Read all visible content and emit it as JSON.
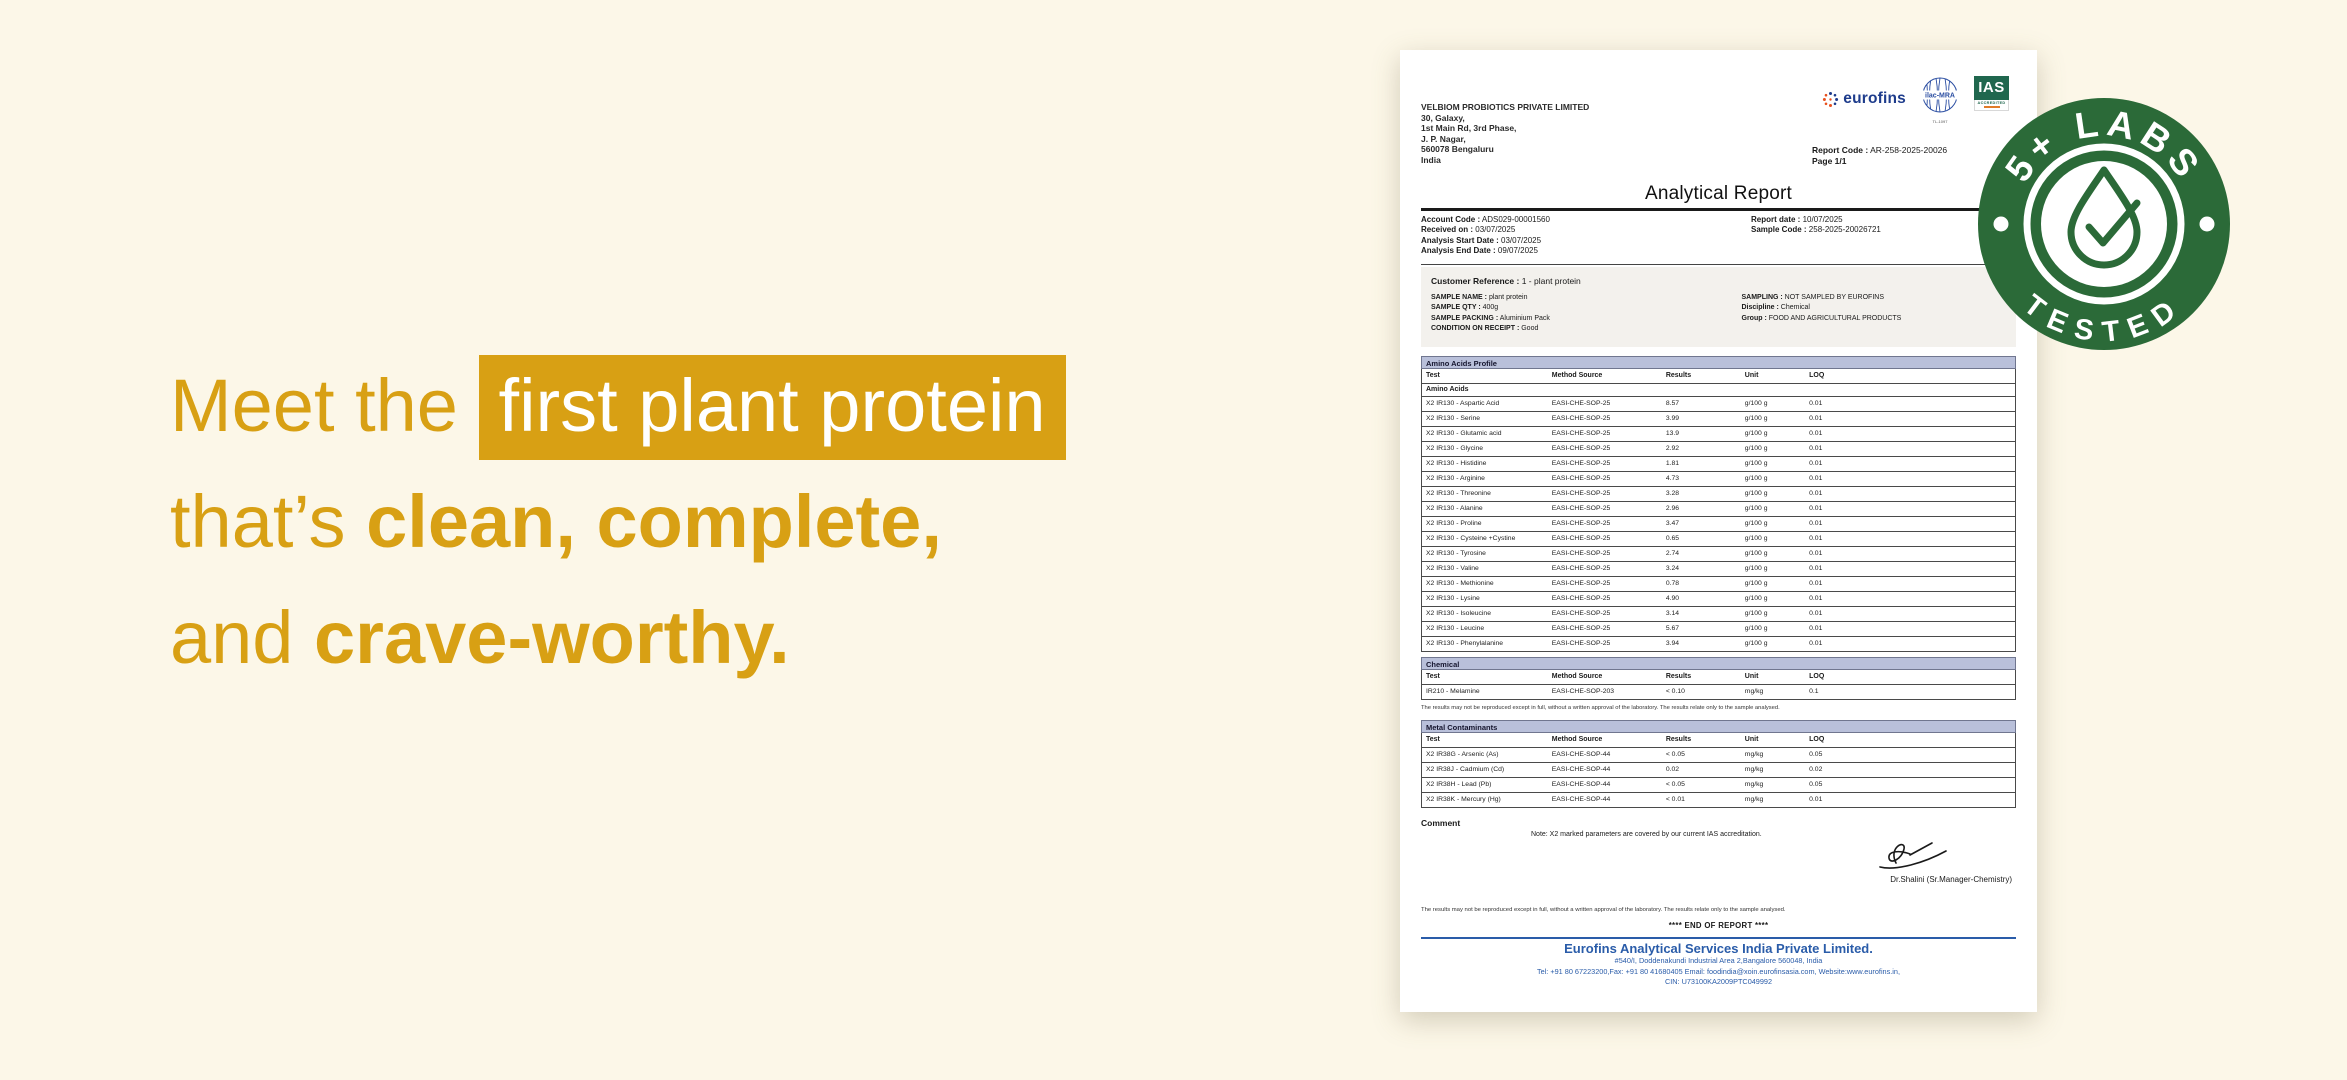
{
  "colors": {
    "background": "#FCF7E8",
    "accent_gold": "#D8A014",
    "badge_green": "#2B6A38",
    "footer_blue": "#2A5CA9",
    "section_bar_lavender": "#B9C0DA",
    "eurofins_blue": "#1E3C8C",
    "ias_green": "#20674E"
  },
  "headline": {
    "line1_prefix": "Meet the",
    "line1_highlight": "first plant protein",
    "line2_prefix": "that’s",
    "line2_bold": "clean, complete,",
    "line3_prefix": "and",
    "line3_bold": "crave-worthy."
  },
  "badge": {
    "top_text": "5+ LABS",
    "bottom_text": "TESTED",
    "icon": "droplet-check-icon"
  },
  "document": {
    "company": [
      "VELBIOM PROBIOTICS PRIVATE LIMITED",
      "30, Galaxy,",
      "1st Main Rd, 3rd Phase,",
      "J. P. Nagar,",
      "560078 Bengaluru",
      "India"
    ],
    "logos": {
      "eurofins": "eurofins",
      "ilac": "ilac-MRA",
      "ilac_sub": "TL-1097",
      "ias": "IAS",
      "ias_sub": "ACCREDITED"
    },
    "report_code_label": "Report Code :",
    "report_code": "AR-258-2025-20026",
    "page_label": "Page 1/1",
    "title": "Analytical Report",
    "meta_left": [
      {
        "label": "Account Code :",
        "value": "ADS029-00001560"
      },
      {
        "label": "Received on :",
        "value": "03/07/2025"
      },
      {
        "label": "Analysis Start Date :",
        "value": "03/07/2025"
      },
      {
        "label": "Analysis End Date :",
        "value": "09/07/2025"
      }
    ],
    "meta_right": [
      {
        "label": "Report date :",
        "value": "10/07/2025"
      },
      {
        "label": "Sample Code :",
        "value": "258-2025-20026721"
      }
    ],
    "customer_reference_label": "Customer Reference :",
    "customer_reference_value": "1 - plant protein",
    "sample_left": [
      {
        "label": "SAMPLE NAME :",
        "value": "plant protein"
      },
      {
        "label": "SAMPLE QTY :",
        "value": "400g"
      },
      {
        "label": "SAMPLE PACKING :",
        "value": "Aluminium Pack"
      },
      {
        "label": "CONDITION ON RECEIPT :",
        "value": "Good"
      }
    ],
    "sample_right": [
      {
        "label": "SAMPLING :",
        "value": "NOT SAMPLED BY EUROFINS"
      },
      {
        "label": "Discipline :",
        "value": "Chemical"
      },
      {
        "label": "Group :",
        "value": "FOOD AND AGRICULTURAL PRODUCTS"
      }
    ],
    "table_columns": [
      "Test",
      "Method Source",
      "Results",
      "Unit",
      "LOQ"
    ],
    "sections": [
      {
        "title": "Amino Acids Profile",
        "subsection": "Amino Acids",
        "rows": [
          [
            "X2 IR130 - Aspartic Acid",
            "EASI-CHE-SOP-25",
            "8.57",
            "g/100 g",
            "0.01"
          ],
          [
            "X2 IR130 - Serine",
            "EASI-CHE-SOP-25",
            "3.99",
            "g/100 g",
            "0.01"
          ],
          [
            "X2 IR130 - Glutamic acid",
            "EASI-CHE-SOP-25",
            "13.9",
            "g/100 g",
            "0.01"
          ],
          [
            "X2 IR130 - Glycine",
            "EASI-CHE-SOP-25",
            "2.92",
            "g/100 g",
            "0.01"
          ],
          [
            "X2 IR130 - Histidine",
            "EASI-CHE-SOP-25",
            "1.81",
            "g/100 g",
            "0.01"
          ],
          [
            "X2 IR130 - Arginine",
            "EASI-CHE-SOP-25",
            "4.73",
            "g/100 g",
            "0.01"
          ],
          [
            "X2 IR130 - Threonine",
            "EASI-CHE-SOP-25",
            "3.28",
            "g/100 g",
            "0.01"
          ],
          [
            "X2 IR130 - Alanine",
            "EASI-CHE-SOP-25",
            "2.96",
            "g/100 g",
            "0.01"
          ],
          [
            "X2 IR130 - Proline",
            "EASI-CHE-SOP-25",
            "3.47",
            "g/100 g",
            "0.01"
          ],
          [
            "X2 IR130 - Cysteine +Cystine",
            "EASI-CHE-SOP-25",
            "0.65",
            "g/100 g",
            "0.01"
          ],
          [
            "X2 IR130 - Tyrosine",
            "EASI-CHE-SOP-25",
            "2.74",
            "g/100 g",
            "0.01"
          ],
          [
            "X2 IR130 - Valine",
            "EASI-CHE-SOP-25",
            "3.24",
            "g/100 g",
            "0.01"
          ],
          [
            "X2 IR130 - Methionine",
            "EASI-CHE-SOP-25",
            "0.78",
            "g/100 g",
            "0.01"
          ],
          [
            "X2 IR130 - Lysine",
            "EASI-CHE-SOP-25",
            "4.90",
            "g/100 g",
            "0.01"
          ],
          [
            "X2 IR130 - Isoleucine",
            "EASI-CHE-SOP-25",
            "3.14",
            "g/100 g",
            "0.01"
          ],
          [
            "X2 IR130 - Leucine",
            "EASI-CHE-SOP-25",
            "5.67",
            "g/100 g",
            "0.01"
          ],
          [
            "X2 IR130 - Phenylalanine",
            "EASI-CHE-SOP-25",
            "3.94",
            "g/100 g",
            "0.01"
          ]
        ]
      },
      {
        "title": "Chemical",
        "rows": [
          [
            "IR210 - Melamine",
            "EASI-CHE-SOP-203",
            "< 0.10",
            "mg/kg",
            "0.1"
          ]
        ],
        "note": "The results may not be reproduced except in full, without a written approval of the laboratory. The results relate only to the sample analysed.",
        "margin_top": 5
      },
      {
        "title": "Metal Contaminants",
        "rows": [
          [
            "X2 IR38G - Arsenic (As)",
            "EASI-CHE-SOP-44",
            "< 0.05",
            "mg/kg",
            "0.05"
          ],
          [
            "X2 IR38J - Cadmium (Cd)",
            "EASI-CHE-SOP-44",
            "0.02",
            "mg/kg",
            "0.02"
          ],
          [
            "X2 IR38H - Lead (Pb)",
            "EASI-CHE-SOP-44",
            "< 0.05",
            "mg/kg",
            "0.05"
          ],
          [
            "X2 IR38K - Mercury (Hg)",
            "EASI-CHE-SOP-44",
            "< 0.01",
            "mg/kg",
            "0.01"
          ]
        ],
        "margin_top": 9
      }
    ],
    "comment_heading": "Comment",
    "comment_note": "Note: X2 marked parameters are covered by our current IAS accreditation.",
    "signer": "Dr.Shalini (Sr.Manager-Chemistry)",
    "disclaimer": "The results may not be reproduced except in full, without a written approval of the laboratory. The results relate only to the sample analysed.",
    "end_of_report": "**** END OF REPORT ****",
    "footer": {
      "company": "Eurofins Analytical Services India Private Limited.",
      "address": "#540/I, Doddenakundi Industrial Area 2,Bangalore 560048, India",
      "contact": "Tel: +91 80 67223200,Fax: +91 80 41680405 Email: foodindia@xoin.eurofinsasia.com, Website:www.eurofins.in,",
      "cin": "CIN: U73100KA2009PTC049992"
    }
  }
}
